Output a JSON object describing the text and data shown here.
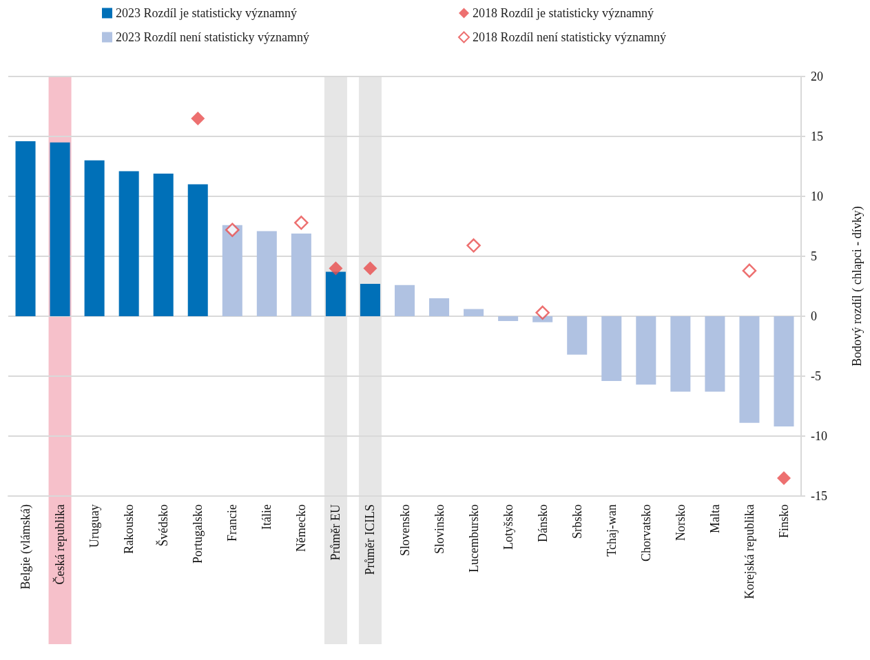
{
  "chart_data": {
    "type": "bar",
    "ylabel": "Bodový rozdíl ( chlapci - dívky)",
    "categories": [
      "Belgie (vlámská)",
      "Česká republika",
      "Uruguay",
      "Rakousko",
      "Švédsko",
      "Portugalsko",
      "Francie",
      "Itálie",
      "Německo",
      "Průměr EU",
      "Průměr ICILS",
      "Slovensko",
      "Slovinsko",
      "Lucembursko",
      "Lotyšsko",
      "Dánsko",
      "Srbsko",
      "Tchaj-wan",
      "Chorvatsko",
      "Norsko",
      "Malta",
      "Korejská republika",
      "Finsko"
    ],
    "series": [
      {
        "name": "2023 Rozdíl je statisticky významný",
        "color": "#0070b8",
        "values": [
          14.6,
          14.5,
          13.0,
          12.1,
          11.9,
          11.0,
          null,
          null,
          null,
          3.7,
          2.7,
          null,
          null,
          null,
          null,
          null,
          null,
          null,
          null,
          null,
          null,
          null,
          null
        ]
      },
      {
        "name": "2023 Rozdíl není statisticky významný",
        "color": "#b0c2e2",
        "values": [
          null,
          null,
          null,
          null,
          null,
          null,
          7.6,
          7.1,
          6.9,
          null,
          null,
          2.6,
          1.5,
          0.6,
          -0.4,
          -0.5,
          -3.2,
          -5.4,
          -5.7,
          -6.3,
          -6.3,
          -8.9,
          -9.2
        ]
      },
      {
        "name": "2018 Rozdíl je statisticky významný",
        "type": "scatter",
        "marker": "diamond",
        "color": "#e84c4c",
        "x": [
          "Portugalsko",
          "Průměr EU",
          "Průměr ICILS",
          "Finsko"
        ],
        "values": [
          16.5,
          4.0,
          4.0,
          -13.5
        ]
      },
      {
        "name": "2018 Rozdíl není statisticky významný",
        "type": "scatter",
        "marker": "diamond-open",
        "color": "#e84c4c",
        "x": [
          "Francie",
          "Německo",
          "Lucembursko",
          "Dánsko",
          "Korejská republika"
        ],
        "values": [
          7.2,
          7.8,
          5.9,
          0.3,
          3.8
        ]
      }
    ],
    "bands": [
      {
        "axis": "x",
        "from": "Česká republika",
        "to": "Česká republika",
        "color": "#f6c0ca"
      },
      {
        "axis": "x",
        "from": "Průměr EU",
        "to": "Průměr EU",
        "color": "#e6e6e6"
      },
      {
        "axis": "x",
        "from": "Průměr ICILS",
        "to": "Průměr ICILS",
        "color": "#e6e6e6"
      }
    ],
    "ylim": [
      -15,
      20
    ],
    "yticks": [
      -15,
      -10,
      -5,
      0,
      5,
      10,
      15,
      20
    ],
    "grid": "y",
    "legend": "top"
  }
}
